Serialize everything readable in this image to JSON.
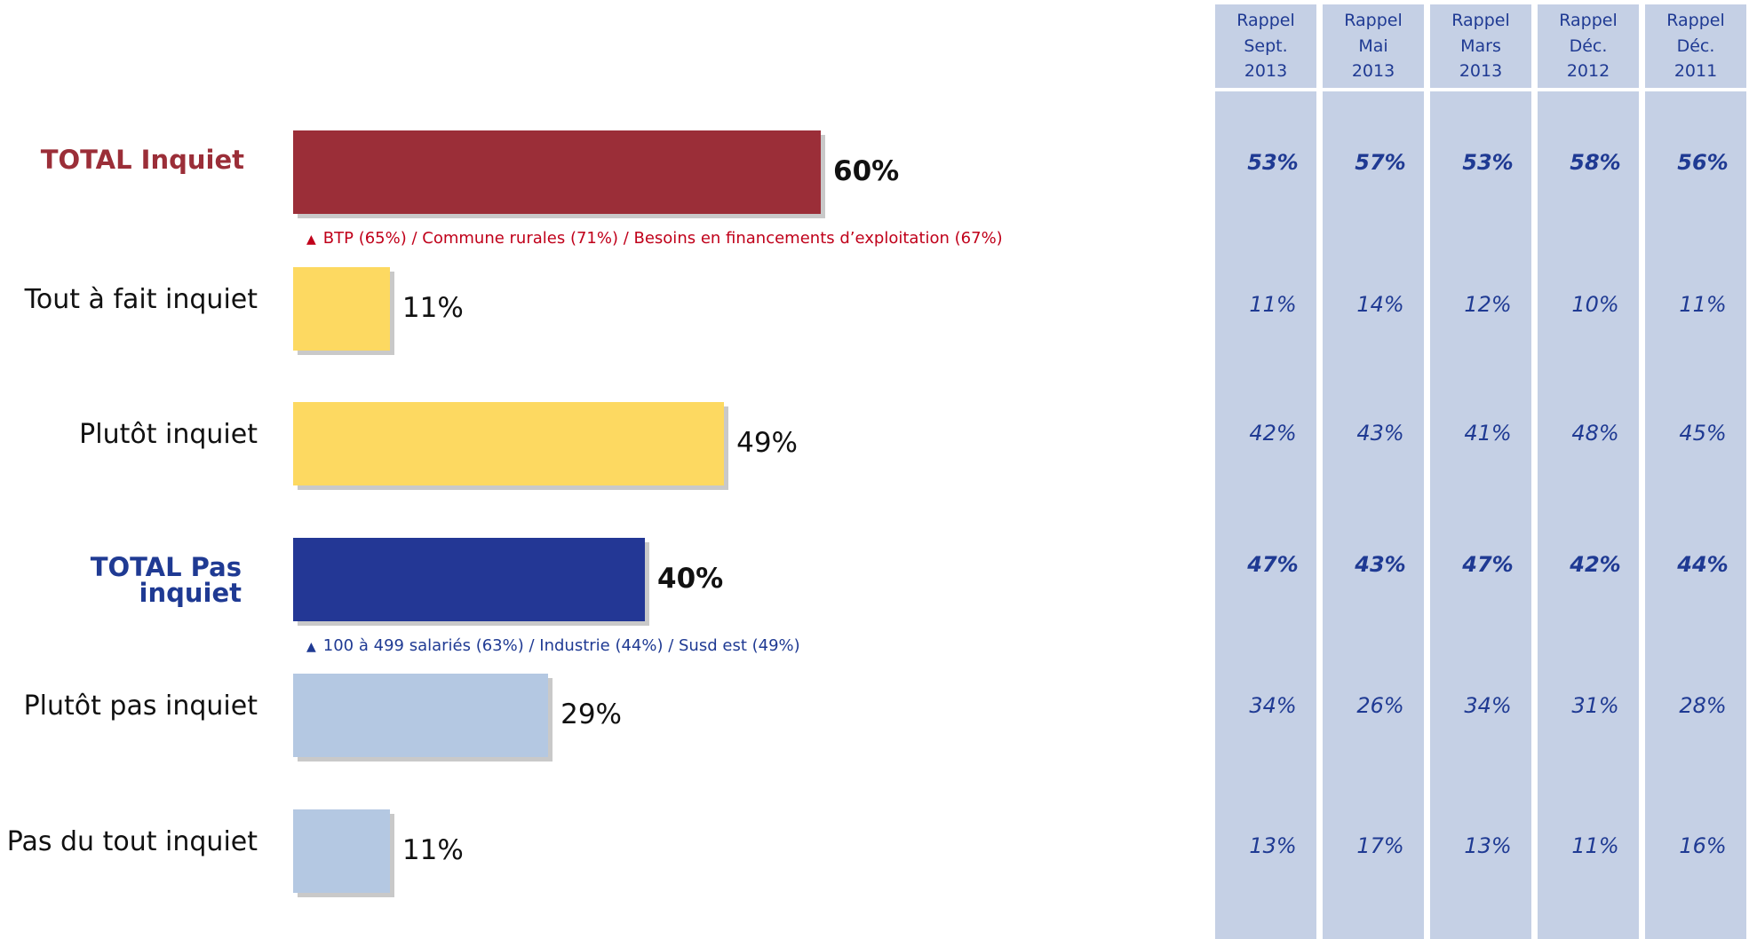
{
  "chart_data": {
    "type": "bar",
    "orientation": "horizontal",
    "xlim": [
      0,
      100
    ],
    "colors": {
      "total_inquiet": "#9b2e38",
      "inquiet": "#fdd961",
      "total_pas_inquiet": "#233795",
      "pas_inquiet": "#b4c8e2",
      "history_column": "#c5d0e5",
      "history_text": "#1f3a93"
    },
    "categories": [
      "TOTAL Inquiet",
      "Tout à fait inquiet",
      "Plutôt inquiet",
      "TOTAL Pas inquiet",
      "Plutôt pas inquiet",
      "Pas du tout inquiet"
    ],
    "values": [
      60,
      11,
      49,
      40,
      29,
      11
    ],
    "value_labels": [
      "60%",
      "11%",
      "49%",
      "40%",
      "29%",
      "11%"
    ],
    "bold_rows": [
      0,
      3
    ],
    "label_colors": [
      "#9b2e38",
      "#111111",
      "#111111",
      "#1f3a93",
      "#111111",
      "#111111"
    ],
    "bar_color_keys": [
      "total_inquiet",
      "inquiet",
      "inquiet",
      "total_pas_inquiet",
      "pas_inquiet",
      "pas_inquiet"
    ],
    "annotations": [
      {
        "after_row": 0,
        "text": "BTP (65%) / Commune rurales (71%) / Besoins en financements d’exploitation (67%)",
        "color": "#c0001a",
        "symbol": "▲"
      },
      {
        "after_row": 3,
        "text": "100 à 499 salariés (63%) / Industrie (44%) / Susd est (49%)",
        "color": "#1f3a93",
        "symbol": "▲"
      }
    ],
    "history": {
      "columns": [
        "Rappel\nSept.\n2013",
        "Rappel\nMai\n2013",
        "Rappel\nMars\n2013",
        "Rappel\nDéc.\n2012",
        "Rappel\nDéc.\n2011"
      ],
      "rows": [
        [
          "53%",
          "57%",
          "53%",
          "58%",
          "56%"
        ],
        [
          "11%",
          "14%",
          "12%",
          "10%",
          "11%"
        ],
        [
          "42%",
          "43%",
          "41%",
          "48%",
          "45%"
        ],
        [
          "47%",
          "43%",
          "47%",
          "42%",
          "44%"
        ],
        [
          "34%",
          "26%",
          "34%",
          "31%",
          "28%"
        ],
        [
          "13%",
          "17%",
          "13%",
          "11%",
          "16%"
        ]
      ]
    }
  }
}
